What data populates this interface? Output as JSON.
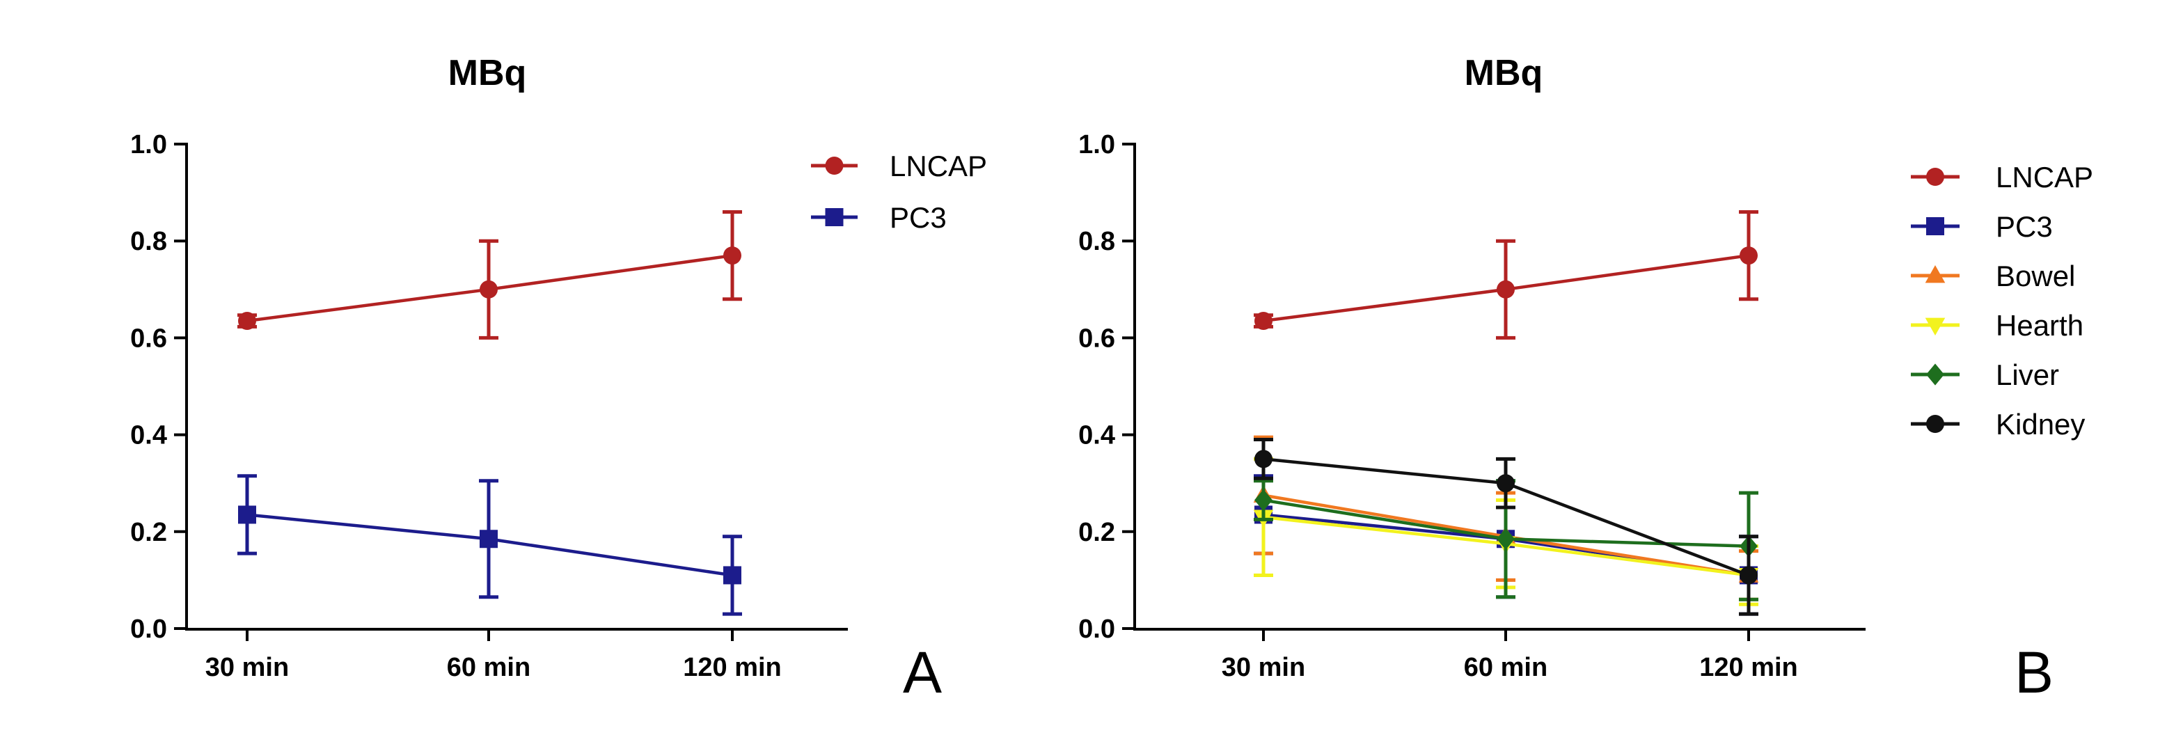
{
  "colors": {
    "LNCAP": "#b22222",
    "PC3": "#1c1c8c",
    "Bowel": "#f07820",
    "Hearth": "#f2f21e",
    "Liver": "#1e6e1e",
    "Kidney": "#111111",
    "axis": "#000000"
  },
  "chart_data": [
    {
      "type": "line",
      "title": "MBq",
      "panel_label": "A",
      "xlabel": "",
      "ylabel": "",
      "categories": [
        "30 min",
        "60 min",
        "120 min"
      ],
      "ylim": [
        0.0,
        1.0
      ],
      "yticks": [
        "0.0",
        "0.2",
        "0.4",
        "0.6",
        "0.8",
        "1.0"
      ],
      "legend_position": "top-right",
      "series": [
        {
          "name": "LNCAP",
          "marker": "circle",
          "values": [
            0.635,
            0.7,
            0.77
          ],
          "errors": [
            0.012,
            0.1,
            0.09
          ]
        },
        {
          "name": "PC3",
          "marker": "square",
          "values": [
            0.235,
            0.185,
            0.11
          ],
          "errors": [
            0.08,
            0.12,
            0.08
          ]
        }
      ]
    },
    {
      "type": "line",
      "title": "MBq",
      "panel_label": "B",
      "xlabel": "",
      "ylabel": "",
      "categories": [
        "30 min",
        "60 min",
        "120 min"
      ],
      "ylim": [
        0.0,
        1.0
      ],
      "yticks": [
        "0.0",
        "0.2",
        "0.4",
        "0.6",
        "0.8",
        "1.0"
      ],
      "legend_position": "top-right",
      "series": [
        {
          "name": "LNCAP",
          "marker": "circle",
          "values": [
            0.635,
            0.7,
            0.77
          ],
          "errors": [
            0.012,
            0.1,
            0.09
          ]
        },
        {
          "name": "PC3",
          "marker": "square",
          "values": [
            0.235,
            0.185,
            0.11
          ],
          "errors": [
            0.08,
            0.12,
            0.08
          ]
        },
        {
          "name": "Bowel",
          "marker": "triangle-up",
          "values": [
            0.275,
            0.19,
            0.11
          ],
          "errors": [
            0.12,
            0.09,
            0.05
          ]
        },
        {
          "name": "Hearth",
          "marker": "triangle-down",
          "values": [
            0.23,
            0.175,
            0.11
          ],
          "errors": [
            0.12,
            0.09,
            0.06
          ]
        },
        {
          "name": "Liver",
          "marker": "diamond",
          "values": [
            0.265,
            0.185,
            0.17
          ],
          "errors": [
            0.04,
            0.12,
            0.11
          ]
        },
        {
          "name": "Kidney",
          "marker": "circle",
          "values": [
            0.35,
            0.3,
            0.11
          ],
          "errors": [
            0.04,
            0.05,
            0.08
          ]
        }
      ]
    }
  ]
}
